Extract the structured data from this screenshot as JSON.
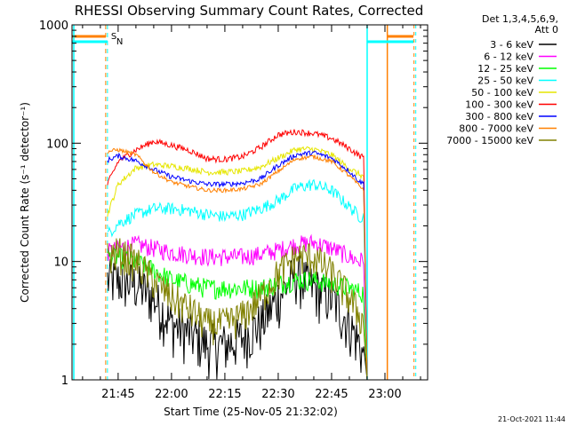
{
  "chart_data": {
    "type": "line",
    "title": "RHESSI Observing Summary Count Rates, Corrected",
    "xlabel": "Start Time (25-Nov-05 21:32:02)",
    "ylabel": "Corrected Count Rate (s⁻¹ detector⁻¹)",
    "y_scale": "log",
    "ylim": [
      1,
      1000
    ],
    "xlim": [
      "21:32:02",
      "23:12:00"
    ],
    "x_ticks": [
      "21:45",
      "22:00",
      "22:15",
      "22:30",
      "22:45",
      "23:00"
    ],
    "y_ticks": [
      "1",
      "10",
      "100",
      "1000"
    ],
    "grid": false,
    "legend_position": "right",
    "legend_header": [
      "Det 1,3,4,5,6,9,",
      "Att 0"
    ],
    "footer_date": "21-Oct-2021 11:44",
    "flags": [
      {
        "label": "S",
        "color": "#ff8000",
        "start": "21:32:02",
        "end": "21:41:30",
        "resume": "23:00:40"
      },
      {
        "label": "N",
        "color": "#00ffff",
        "start": "21:32:02",
        "end": "21:42:00",
        "resume": "22:55:00"
      }
    ],
    "x": [
      "21:42",
      "21:45",
      "21:50",
      "21:55",
      "22:00",
      "22:05",
      "22:10",
      "22:15",
      "22:20",
      "22:25",
      "22:30",
      "22:35",
      "22:40",
      "22:45",
      "22:50",
      "22:53",
      "22:54"
    ],
    "series": [
      {
        "name": "3 - 6 keV",
        "color": "#000000",
        "noise": 0.5,
        "values": [
          7,
          7,
          6.5,
          5,
          3,
          2.5,
          2,
          2,
          2.3,
          3,
          5,
          8,
          6,
          5,
          3,
          2,
          1.5
        ]
      },
      {
        "name": "6 - 12 keV",
        "color": "#ff00ff",
        "noise": 0.18,
        "values": [
          12,
          13,
          14,
          13,
          12,
          11.5,
          11,
          11,
          11,
          11.5,
          12.5,
          14,
          14.5,
          13,
          11,
          10,
          11
        ]
      },
      {
        "name": "12 - 25 keV",
        "color": "#00ff00",
        "noise": 0.2,
        "values": [
          11,
          11,
          10,
          8.5,
          7,
          6.5,
          6,
          6,
          6,
          6,
          6.5,
          7,
          7,
          6.5,
          6,
          5.5,
          5.5
        ]
      },
      {
        "name": "25 - 50 keV",
        "color": "#00ffff",
        "noise": 0.12,
        "values": [
          17,
          21,
          25,
          28,
          28,
          27,
          25,
          24,
          25,
          28,
          33,
          42,
          45,
          40,
          29,
          24,
          24
        ]
      },
      {
        "name": "50 - 100 keV",
        "color": "#e6e600",
        "noise": 0.06,
        "values": [
          25,
          45,
          62,
          66,
          64,
          61,
          57,
          57,
          58,
          63,
          75,
          89,
          89,
          80,
          61,
          54,
          52
        ]
      },
      {
        "name": "100 - 300 keV",
        "color": "#ff0000",
        "noise": 0.06,
        "values": [
          45,
          70,
          88,
          104,
          96,
          87,
          74,
          73,
          77,
          92,
          118,
          125,
          121,
          110,
          90,
          78,
          76
        ]
      },
      {
        "name": "300 - 800 keV",
        "color": "#0000ff",
        "noise": 0.05,
        "values": [
          72,
          78,
          71,
          60,
          52,
          48,
          45,
          45,
          46,
          50,
          65,
          80,
          83,
          75,
          58,
          47,
          46
        ]
      },
      {
        "name": "800 - 7000 keV",
        "color": "#ff8000",
        "noise": 0.04,
        "values": [
          85,
          88,
          80,
          57,
          47,
          43,
          40,
          40,
          41,
          45,
          58,
          74,
          77,
          70,
          53,
          43,
          41
        ]
      },
      {
        "name": "7000 - 15000 keV",
        "color": "#808000",
        "noise": 0.35,
        "values": [
          11,
          12,
          10,
          7,
          5,
          4,
          3,
          3,
          3.5,
          5,
          8,
          11,
          11,
          8,
          5,
          3.5,
          3
        ]
      }
    ]
  }
}
